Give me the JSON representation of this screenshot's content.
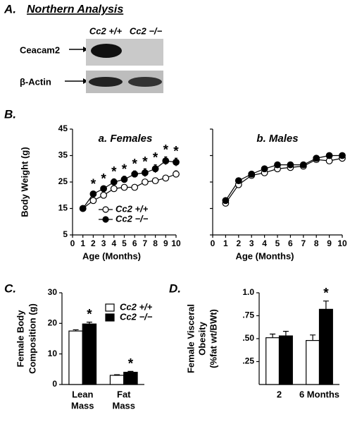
{
  "blot": {
    "label": "A.",
    "title": "Northern Analysis",
    "lanes": [
      "Cc2 +/+",
      "Cc2 −/−"
    ],
    "rows": [
      "Ceacam2",
      "β-Actin"
    ]
  },
  "chart_data": [
    {
      "type": "line",
      "label": "B.",
      "title": "a. Females",
      "xlabel": "Age (Months)",
      "ylabel": [
        "Body Weight (g)"
      ],
      "x": [
        1,
        2,
        3,
        4,
        5,
        6,
        7,
        8,
        9,
        10
      ],
      "xlim": [
        0,
        10
      ],
      "xticks": [
        0,
        1,
        2,
        3,
        4,
        5,
        6,
        7,
        8,
        9,
        10
      ],
      "ylim": [
        5,
        45
      ],
      "yticks": [
        5,
        15,
        25,
        35,
        45
      ],
      "legend": true,
      "series": [
        {
          "name": "Cc2 +/+",
          "color": "#ffffff",
          "values": [
            15,
            18,
            20,
            22.5,
            23,
            23,
            25,
            25.5,
            26.5,
            28
          ],
          "errors": [
            0.8,
            1,
            1,
            1,
            1,
            0.8,
            1,
            1,
            1,
            1.2
          ]
        },
        {
          "name": "Cc2 −/−",
          "color": "#000000",
          "values": [
            15,
            20.5,
            22.5,
            25,
            26,
            28,
            28.5,
            30,
            33,
            32.5
          ],
          "errors": [
            0.8,
            1,
            1,
            1.2,
            1.2,
            1.2,
            1.5,
            1.5,
            1.5,
            1.5
          ]
        }
      ],
      "annotations": [
        {
          "x": 2,
          "text": "*"
        },
        {
          "x": 3,
          "text": "*"
        },
        {
          "x": 4,
          "text": "*"
        },
        {
          "x": 5,
          "text": "*"
        },
        {
          "x": 6,
          "text": "*"
        },
        {
          "x": 7,
          "text": "*"
        },
        {
          "x": 8,
          "text": "*"
        },
        {
          "x": 9,
          "text": "*"
        },
        {
          "x": 10,
          "text": "*"
        }
      ]
    },
    {
      "type": "line",
      "title": "b. Males",
      "xlabel": "Age (Months)",
      "x": [
        1,
        2,
        3,
        4,
        5,
        6,
        7,
        8,
        9,
        10
      ],
      "xlim": [
        0,
        10
      ],
      "xticks": [
        0,
        1,
        2,
        3,
        4,
        5,
        6,
        7,
        8,
        9,
        10
      ],
      "ylim": [
        5,
        45
      ],
      "yticks": [
        5,
        15,
        25,
        35,
        45
      ],
      "legend": false,
      "series": [
        {
          "name": "Cc2 +/+",
          "color": "#ffffff",
          "values": [
            17,
            24,
            27.5,
            28.5,
            30,
            30.5,
            31,
            33.5,
            33,
            34
          ],
          "errors": [
            0.8,
            0.8,
            0.8,
            0.8,
            0.8,
            0.8,
            0.8,
            0.8,
            0.8,
            0.8
          ]
        },
        {
          "name": "Cc2 −/−",
          "color": "#000000",
          "values": [
            18,
            25.5,
            28,
            30,
            31.5,
            31.5,
            31.5,
            34,
            35,
            35
          ],
          "errors": [
            0.8,
            0.8,
            0.8,
            0.8,
            0.8,
            0.8,
            0.8,
            0.8,
            0.8,
            0.8
          ]
        }
      ]
    },
    {
      "type": "bar",
      "label": "C.",
      "ylabel": [
        "Female Body",
        "Composition  (g)"
      ],
      "categories": [
        [
          "Lean",
          "Mass"
        ],
        [
          "Fat",
          "Mass"
        ]
      ],
      "ylim": [
        0,
        30
      ],
      "yticks": [
        0,
        10,
        20,
        30
      ],
      "legend": true,
      "series": [
        {
          "name": "Cc2 +/+",
          "color": "#ffffff",
          "values": [
            17.5,
            3
          ],
          "errors": [
            0.4,
            0.2
          ]
        },
        {
          "name": "Cc2 −/−",
          "color": "#000000",
          "values": [
            19.8,
            4
          ],
          "errors": [
            0.6,
            0.3
          ]
        }
      ],
      "annotations": [
        {
          "category": 0,
          "series": 1,
          "text": "*"
        },
        {
          "category": 1,
          "series": 1,
          "text": "*"
        }
      ]
    },
    {
      "type": "bar",
      "label": "D.",
      "ylabel": [
        "Female Visceral",
        "Obesity",
        "(%fat wt/BWt)"
      ],
      "categories": [
        [
          "2"
        ],
        [
          "6 Months"
        ]
      ],
      "ylim": [
        0,
        1.0
      ],
      "yticks": [
        {
          "value": 0.25,
          "label": ".25"
        },
        {
          "value": 0.5,
          "label": ".50"
        },
        {
          "value": 0.75,
          "label": ".75"
        },
        {
          "value": 1.0,
          "label": "1.0"
        }
      ],
      "legend": false,
      "series": [
        {
          "name": "Cc2 +/+",
          "color": "#ffffff",
          "values": [
            0.51,
            0.48
          ],
          "errors": [
            0.04,
            0.06
          ]
        },
        {
          "name": "Cc2 −/−",
          "color": "#000000",
          "values": [
            0.53,
            0.82
          ],
          "errors": [
            0.05,
            0.09
          ]
        }
      ],
      "annotations": [
        {
          "category": 1,
          "series": 1,
          "text": "*"
        }
      ]
    }
  ]
}
